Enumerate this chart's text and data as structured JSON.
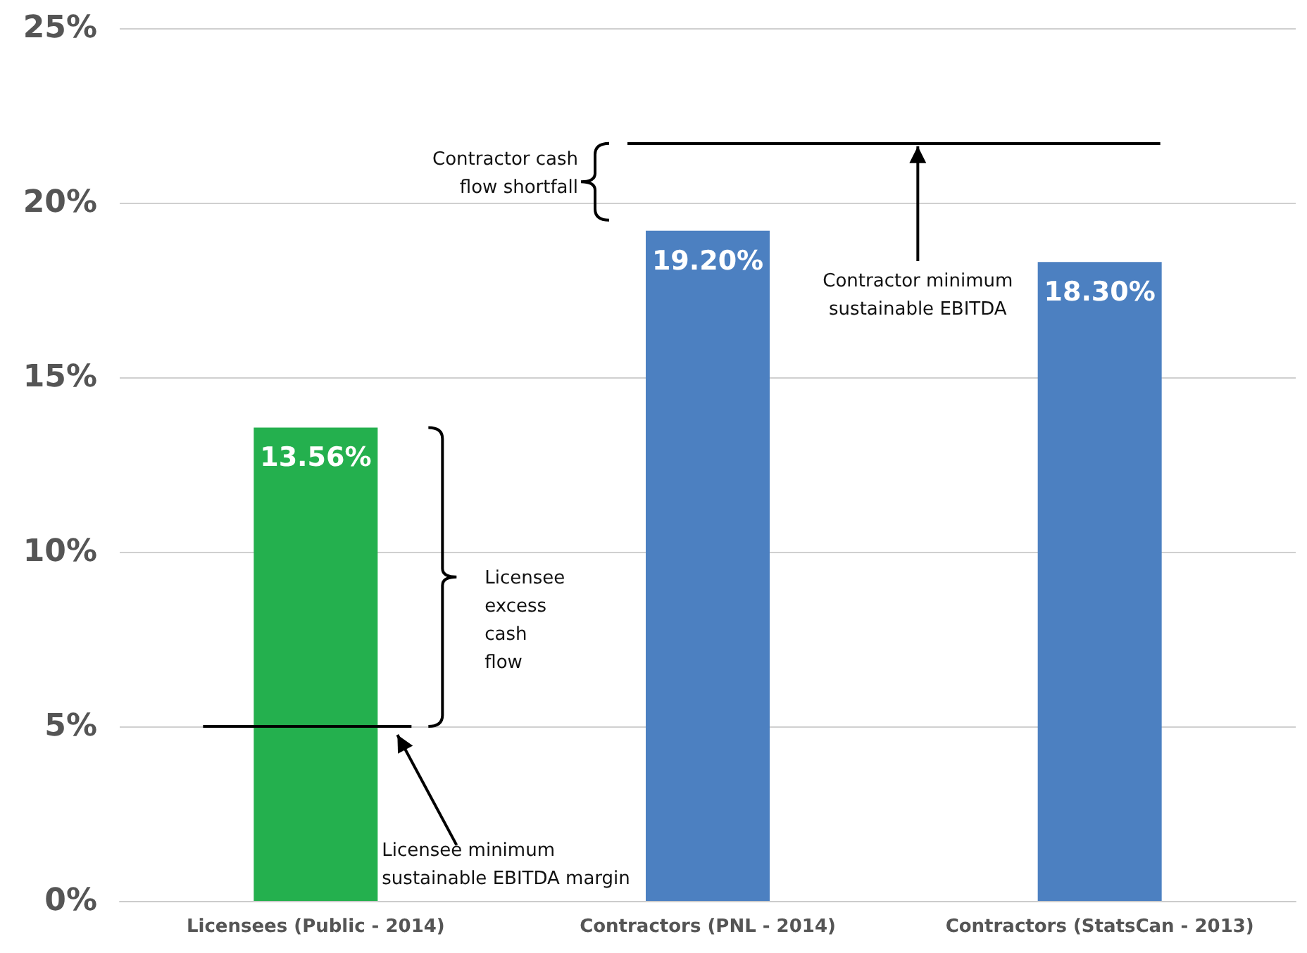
{
  "chart_data": {
    "type": "bar",
    "categories": [
      "Licensees (Public - 2014)",
      "Contractors (PNL - 2014)",
      "Contractors (StatsCan - 2013)"
    ],
    "values": [
      13.56,
      19.2,
      18.3
    ],
    "colors": [
      "#24b04e",
      "#4c80c1",
      "#4c80c1"
    ],
    "value_labels": [
      "13.56%",
      "19.20%",
      "18.30%"
    ],
    "ylim": [
      0,
      25
    ],
    "yticks": [
      {
        "value": 0,
        "label": "0%"
      },
      {
        "value": 5,
        "label": "5%"
      },
      {
        "value": 10,
        "label": "10%"
      },
      {
        "value": 15,
        "label": "15%"
      },
      {
        "value": 20,
        "label": "20%"
      },
      {
        "value": 25,
        "label": "25%"
      }
    ],
    "grid": "y",
    "ref_lines": [
      {
        "axis": "y",
        "value": 5,
        "label": "Licensee minimum sustainable EBITDA margin",
        "color": "#000000"
      },
      {
        "axis": "y",
        "value": 21.7,
        "label": "Contractor minimum sustainable EBITDA",
        "color": "#000000"
      }
    ],
    "annotations": [
      "Licensee excess cash flow",
      "Contractor cash flow shortfall"
    ]
  }
}
